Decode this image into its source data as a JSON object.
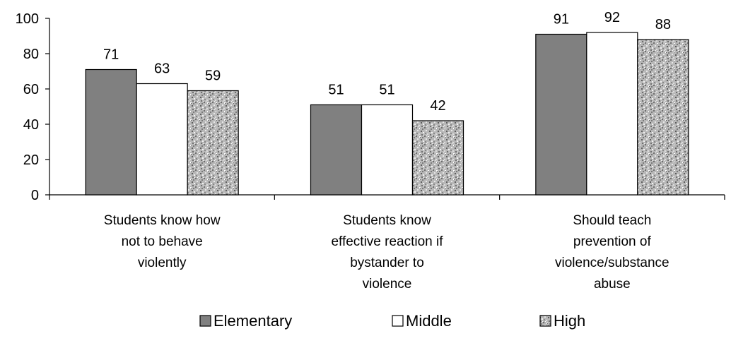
{
  "chart_data": {
    "type": "bar",
    "title": "",
    "xlabel": "",
    "ylabel": "",
    "ylim": [
      0,
      100
    ],
    "yticks": [
      0,
      20,
      40,
      60,
      80,
      100
    ],
    "grid": false,
    "legend_position": "bottom",
    "categories": [
      [
        "Students know how",
        "not to behave",
        "violently"
      ],
      [
        "Students know",
        "effective reaction if",
        "bystander to",
        "violence"
      ],
      [
        "Should teach",
        "prevention of",
        "violence/substance",
        "abuse"
      ]
    ],
    "series": [
      {
        "name": "Elementary",
        "values": [
          71,
          51,
          91
        ],
        "fill": "solid",
        "color": "#808080"
      },
      {
        "name": "Middle",
        "values": [
          63,
          51,
          92
        ],
        "fill": "solid",
        "color": "#ffffff"
      },
      {
        "name": "High",
        "values": [
          59,
          42,
          88
        ],
        "fill": "speckled",
        "color": "#a8a8a8"
      }
    ]
  }
}
